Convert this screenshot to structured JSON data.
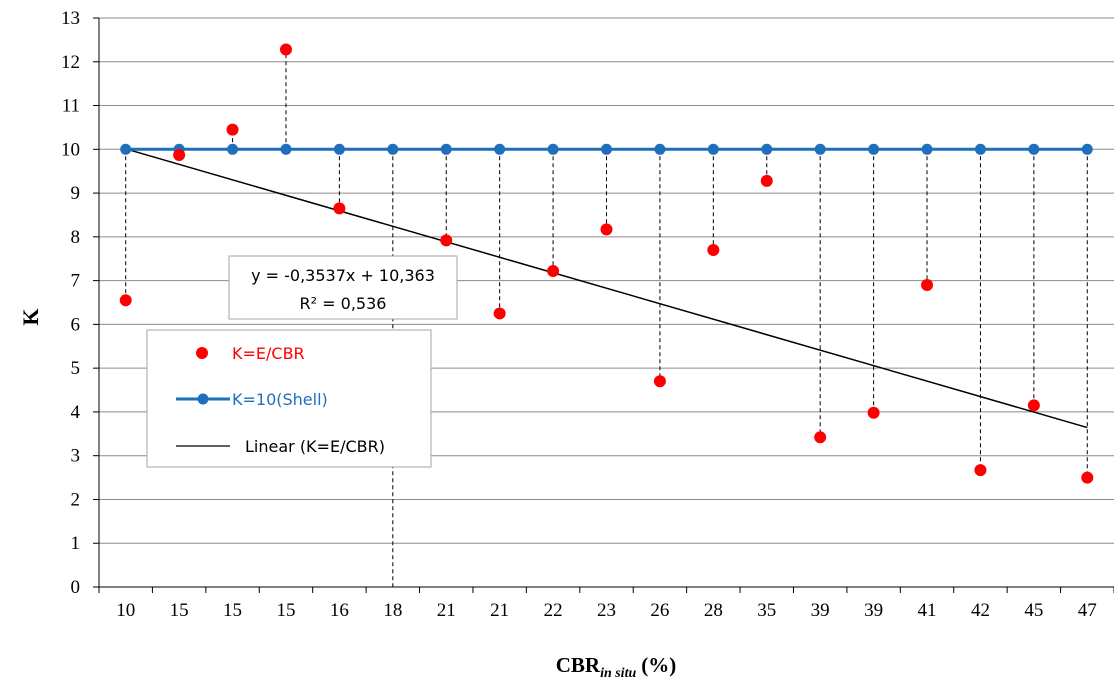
{
  "chart_data": {
    "type": "scatter",
    "categories": [
      "10",
      "15",
      "15",
      "15",
      "16",
      "18",
      "21",
      "21",
      "22",
      "23",
      "26",
      "28",
      "35",
      "39",
      "39",
      "41",
      "42",
      "45",
      "47"
    ],
    "xlabel": "CBR",
    "xlabel_sub": "in situ",
    "xlabel_unit": "(%)",
    "ylabel": "K",
    "ylim": [
      0,
      13
    ],
    "yticks": [
      "0",
      "1",
      "2",
      "3",
      "4",
      "5",
      "6",
      "7",
      "8",
      "9",
      "10",
      "11",
      "12",
      "13"
    ],
    "grid": true,
    "series": [
      {
        "name": "K=E/CBR",
        "kind": "markers",
        "color": "#ff0000",
        "values": [
          6.55,
          9.87,
          10.45,
          12.28,
          8.65,
          null,
          7.92,
          6.25,
          7.22,
          8.17,
          4.7,
          7.7,
          9.28,
          3.42,
          3.98,
          6.9,
          2.67,
          4.15,
          2.5
        ]
      },
      {
        "name": "K=10(Shell)",
        "kind": "line-markers",
        "color": "#1f6fbd",
        "values": [
          10,
          10,
          10,
          10,
          10,
          10,
          10,
          10,
          10,
          10,
          10,
          10,
          10,
          10,
          10,
          10,
          10,
          10,
          10
        ]
      },
      {
        "name": "Linear (K=E/CBR)",
        "kind": "trendline",
        "color": "#000000",
        "slope": -0.3537,
        "intercept": 10.363
      }
    ],
    "drop_lines": true,
    "annotation": {
      "equation": "y = -0,3537x + 10,363",
      "r2": "R² = 0,536"
    },
    "legend_position": "left-middle"
  }
}
